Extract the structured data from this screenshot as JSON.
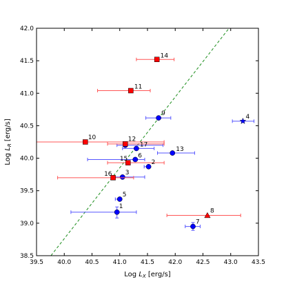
{
  "chart_data": {
    "type": "scatter",
    "title": "",
    "xlabel": "Log $L_X$ [erg/s]",
    "xlabel_parts": {
      "prefix": "Log ",
      "symbol": "L",
      "sub": "X",
      "unit": " [erg/s]"
    },
    "ylabel": "Log $L_R$ [erg/s]",
    "ylabel_parts": {
      "prefix": "Log ",
      "symbol": "L",
      "sub": "R",
      "unit": " [erg/s]"
    },
    "xlim": [
      39.5,
      43.5
    ],
    "ylim": [
      38.5,
      42.0
    ],
    "xticks": [
      39.5,
      40.0,
      40.5,
      41.0,
      41.5,
      42.0,
      42.5,
      43.0,
      43.5
    ],
    "xtick_labels": [
      "39.5",
      "40.0",
      "40.5",
      "41.0",
      "41.5",
      "42.0",
      "42.5",
      "43.0",
      "43.5"
    ],
    "yticks": [
      38.5,
      39.0,
      39.5,
      40.0,
      40.5,
      41.0,
      41.5,
      42.0
    ],
    "ytick_labels": [
      "38.5",
      "39.0",
      "39.5",
      "40.0",
      "40.5",
      "41.0",
      "41.5",
      "42.0"
    ],
    "grid": false,
    "legend": "none",
    "colors": {
      "blue": "#0000ff",
      "red": "#ff0000",
      "line": "#1a8c1a",
      "blue_bar": "#5555ff",
      "red_bar": "#ff5555"
    },
    "reference_line": {
      "style": "dashed",
      "color": "#1a8c1a",
      "x": [
        39.76,
        42.97
      ],
      "y": [
        38.5,
        42.0
      ]
    },
    "series": [
      {
        "marker": "circle",
        "color": "#0000ff",
        "points": [
          {
            "label": "1",
            "x": 40.95,
            "y": 39.17,
            "xerr": [
              40.12,
              41.3
            ],
            "yerr": [
              39.08,
              39.25
            ]
          },
          {
            "label": "2",
            "x": 41.52,
            "y": 39.87,
            "xerr": [
              41.44,
              41.52
            ]
          },
          {
            "label": "3",
            "x": 41.05,
            "y": 39.71,
            "xerr": [
              40.85,
              41.45
            ]
          },
          {
            "label": "5",
            "x": 41.0,
            "y": 39.37,
            "xerr": [
              40.92,
              41.0
            ]
          },
          {
            "label": "6",
            "x": 41.28,
            "y": 39.98,
            "xerr": [
              40.42,
              41.45
            ]
          },
          {
            "label": "7",
            "x": 42.32,
            "y": 38.95,
            "xerr": [
              42.18,
              42.45
            ],
            "yerr": [
              38.89,
              39.01
            ]
          },
          {
            "label": "9",
            "x": 41.7,
            "y": 40.62,
            "xerr": [
              41.47,
              41.92
            ]
          },
          {
            "label": "12",
            "x": 41.1,
            "y": 40.2,
            "xerr": [
              40.95,
              41.78
            ]
          },
          {
            "label": "13",
            "x": 41.95,
            "y": 40.08,
            "xerr": [
              41.68,
              42.35
            ]
          },
          {
            "label": "17",
            "x": 41.3,
            "y": 40.15,
            "xerr": [
              41.05,
              41.62
            ]
          }
        ]
      },
      {
        "marker": "square",
        "color": "#ff0000",
        "points": [
          {
            "label": "10",
            "x": 40.38,
            "y": 40.25,
            "xerr": [
              39.5,
              41.8
            ]
          },
          {
            "label": "11",
            "x": 41.2,
            "y": 41.04,
            "xerr": [
              40.6,
              41.55
            ]
          },
          {
            "label": "12",
            "x": 41.1,
            "y": 40.22,
            "xerr": [
              40.78,
              41.8
            ]
          },
          {
            "label": "14",
            "x": 41.67,
            "y": 41.52,
            "xerr": [
              41.3,
              41.98
            ]
          },
          {
            "label": "15",
            "x": 41.15,
            "y": 39.93,
            "xerr": [
              40.78,
              41.8
            ]
          },
          {
            "label": "16",
            "x": 40.88,
            "y": 39.7,
            "xerr": [
              39.88,
              41.25
            ]
          }
        ]
      },
      {
        "marker": "triangle",
        "color": "#ff0000",
        "points": [
          {
            "label": "8",
            "x": 42.58,
            "y": 39.12,
            "xerr": [
              41.85,
              43.18
            ]
          }
        ]
      },
      {
        "marker": "star",
        "color": "#0000ff",
        "points": [
          {
            "label": "4",
            "x": 43.22,
            "y": 40.57,
            "xerr": [
              43.03,
              43.42
            ]
          }
        ]
      }
    ]
  }
}
